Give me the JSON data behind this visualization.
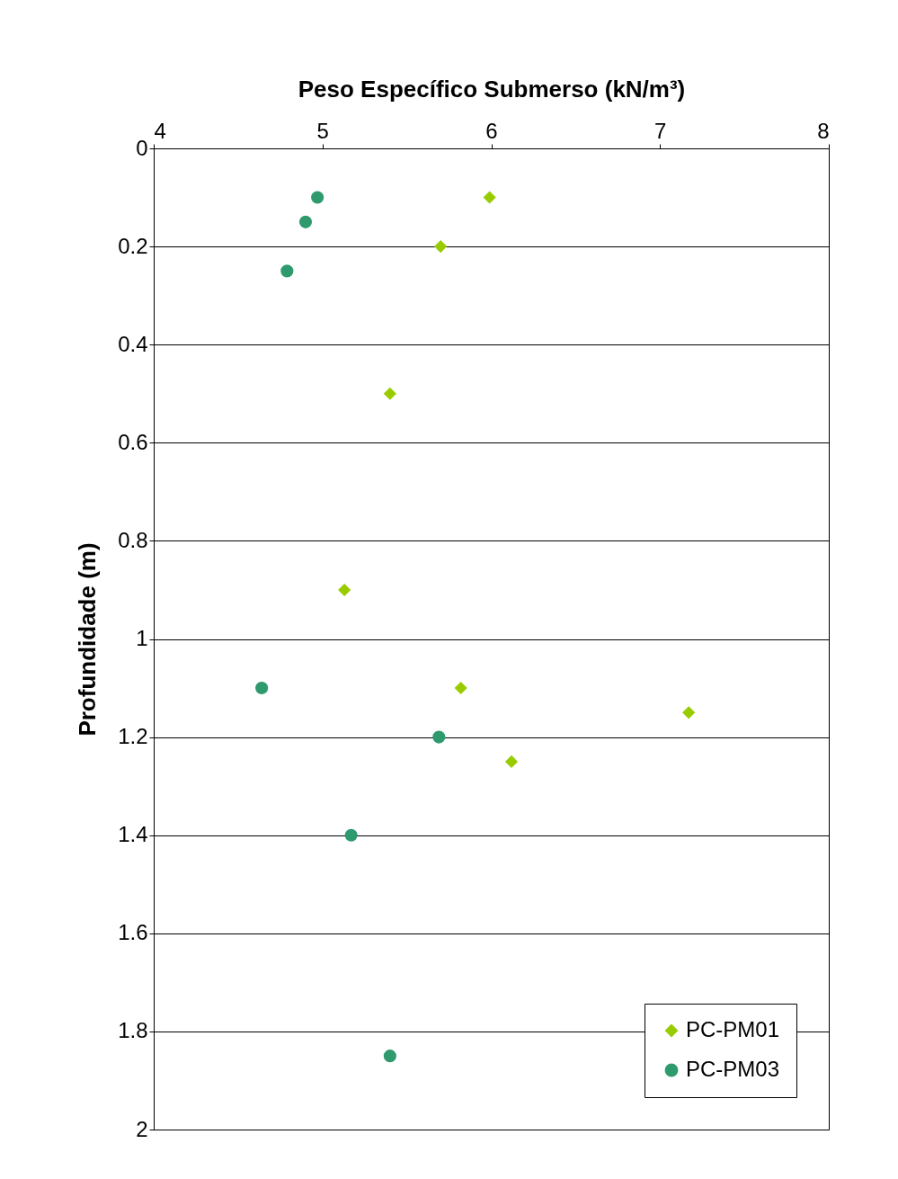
{
  "chart_data": {
    "type": "scatter",
    "xlabel": "Peso Específico Submerso (kN/m³)",
    "ylabel": "Profundidade (m)",
    "xlim": [
      4,
      8
    ],
    "xticks": [
      4,
      5,
      6,
      7,
      8
    ],
    "ylim": [
      2,
      0
    ],
    "yticks": [
      0,
      0.2,
      0.4,
      0.6,
      0.8,
      1,
      1.2,
      1.4,
      1.6,
      1.8,
      2
    ],
    "grid": "y",
    "legend": "bottom right",
    "series": [
      {
        "name": "PC-PM01",
        "color": "#99cc00",
        "marker": "diamond",
        "x": [
          5.99,
          5.7,
          5.4,
          5.13,
          5.82,
          7.17,
          6.12
        ],
        "values": [
          0.1,
          0.2,
          0.5,
          0.9,
          1.1,
          1.15,
          1.25
        ]
      },
      {
        "name": "PC-PM03",
        "color": "#2e9a6e",
        "marker": "circle",
        "x": [
          4.97,
          4.9,
          4.79,
          4.64,
          5.69,
          5.17,
          5.4
        ],
        "values": [
          0.1,
          0.15,
          0.25,
          1.1,
          1.2,
          1.4,
          1.85
        ]
      }
    ]
  }
}
